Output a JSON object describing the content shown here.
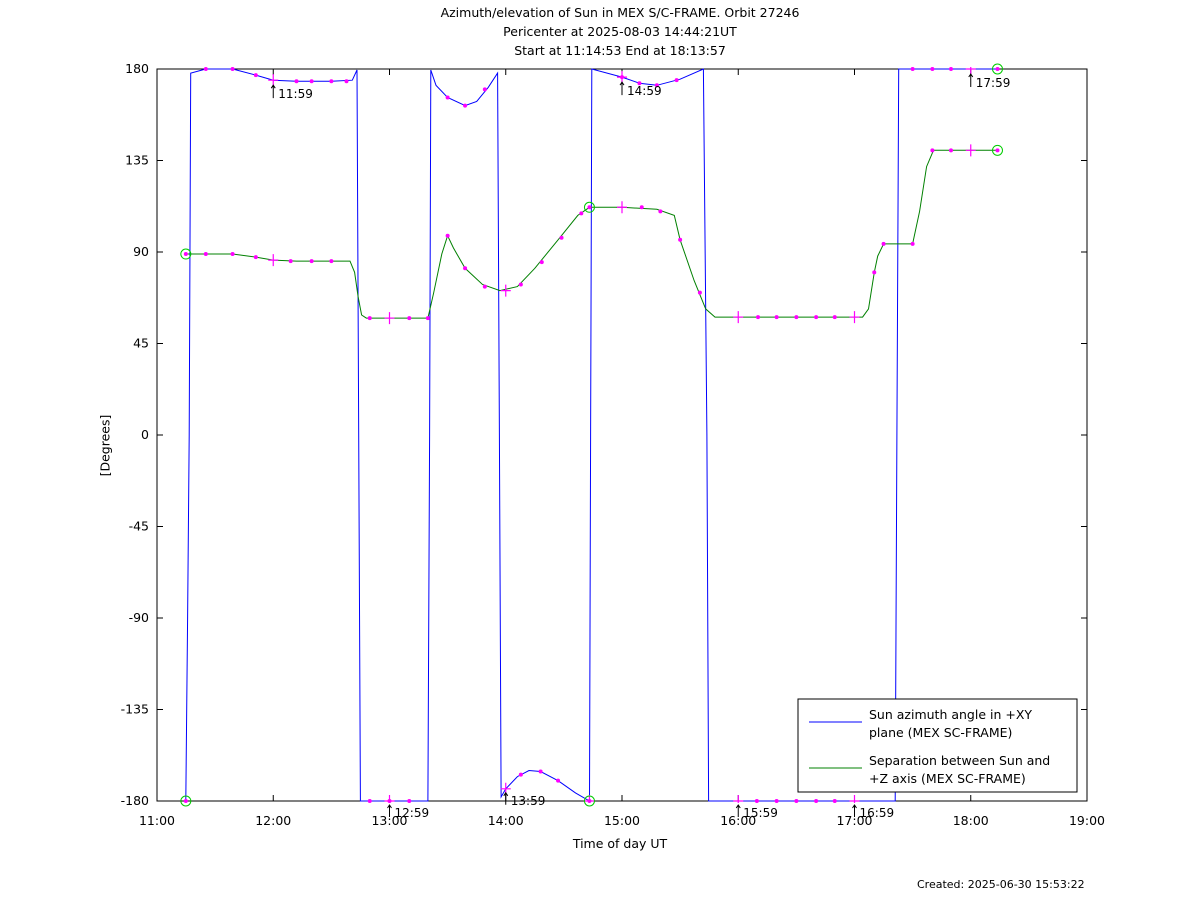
{
  "header": {
    "title": "Azimuth/elevation of Sun in MEX S/C-FRAME.  Orbit 27246",
    "line2": "Pericenter at 2025-08-03 14:44:21UT",
    "line3": "Start at 11:14:53 End at 18:13:57"
  },
  "footer": {
    "created": "Created: 2025-06-30 15:53:22"
  },
  "chart_data": {
    "type": "line",
    "xlabel": "Time of day UT",
    "ylabel": "[Degrees]",
    "xlim": [
      11.0,
      19.0
    ],
    "ylim": [
      -180,
      180
    ],
    "xticks": [
      11,
      12,
      13,
      14,
      15,
      16,
      17,
      18,
      19
    ],
    "xtick_labels": [
      "11:00",
      "12:00",
      "13:00",
      "14:00",
      "15:00",
      "16:00",
      "17:00",
      "18:00",
      "19:00"
    ],
    "yticks": [
      180,
      135,
      90,
      45,
      0,
      -45,
      -90,
      -135,
      -180
    ],
    "ytick_labels": [
      "180",
      "135",
      "90",
      "45",
      "0",
      "-45",
      "-90",
      "-135",
      "-180"
    ],
    "grid": false,
    "legend_position": "bottom-right",
    "series": [
      {
        "name": "Sun azimuth angle in +XY plane (MEX SC-FRAME)",
        "legend_lines": [
          "Sun azimuth angle in +XY",
          "plane (MEX SC-FRAME)"
        ],
        "color": "#0000ff",
        "points": [
          [
            11.248,
            -180
          ],
          [
            11.263,
            -90
          ],
          [
            11.277,
            0
          ],
          [
            11.29,
            178
          ],
          [
            11.42,
            180
          ],
          [
            11.65,
            180
          ],
          [
            11.85,
            177
          ],
          [
            12.0,
            174.5
          ],
          [
            12.2,
            174
          ],
          [
            12.5,
            174
          ],
          [
            12.68,
            174.5
          ],
          [
            12.72,
            179.5
          ],
          [
            12.735,
            0
          ],
          [
            12.75,
            -180
          ],
          [
            13.0,
            -180
          ],
          [
            13.33,
            -180
          ],
          [
            13.345,
            0
          ],
          [
            13.355,
            179.5
          ],
          [
            13.4,
            172
          ],
          [
            13.5,
            166
          ],
          [
            13.65,
            162
          ],
          [
            13.75,
            164
          ],
          [
            13.85,
            171
          ],
          [
            13.93,
            178
          ],
          [
            13.945,
            0
          ],
          [
            13.96,
            -178
          ],
          [
            14.0,
            -174
          ],
          [
            14.1,
            -168
          ],
          [
            14.2,
            -165
          ],
          [
            14.3,
            -165.5
          ],
          [
            14.45,
            -170
          ],
          [
            14.6,
            -176
          ],
          [
            14.72,
            -180
          ],
          [
            14.73,
            0
          ],
          [
            14.74,
            180
          ],
          [
            15.0,
            176
          ],
          [
            15.15,
            173
          ],
          [
            15.3,
            172
          ],
          [
            15.5,
            175
          ],
          [
            15.7,
            180
          ],
          [
            15.73,
            0
          ],
          [
            15.745,
            -180
          ],
          [
            16.0,
            -180
          ],
          [
            16.5,
            -180
          ],
          [
            17.0,
            -180
          ],
          [
            17.35,
            -180
          ],
          [
            17.365,
            0
          ],
          [
            17.38,
            180
          ],
          [
            17.7,
            180
          ],
          [
            18.0,
            180
          ],
          [
            18.23,
            180
          ]
        ]
      },
      {
        "name": "Separation between Sun and +Z axis (MEX SC-FRAME)",
        "legend_lines": [
          "Separation between Sun and",
          "+Z axis (MEX SC-FRAME)"
        ],
        "color": "#008000",
        "points": [
          [
            11.248,
            89
          ],
          [
            11.4,
            89
          ],
          [
            11.65,
            89
          ],
          [
            11.85,
            87.5
          ],
          [
            12.0,
            86
          ],
          [
            12.2,
            85.5
          ],
          [
            12.5,
            85.5
          ],
          [
            12.66,
            85.5
          ],
          [
            12.7,
            80
          ],
          [
            12.73,
            68
          ],
          [
            12.76,
            59
          ],
          [
            12.8,
            57.5
          ],
          [
            13.0,
            57.5
          ],
          [
            13.33,
            57.5
          ],
          [
            13.38,
            70
          ],
          [
            13.45,
            89
          ],
          [
            13.5,
            98
          ],
          [
            13.55,
            92
          ],
          [
            13.65,
            82
          ],
          [
            13.8,
            74
          ],
          [
            13.95,
            71
          ],
          [
            14.1,
            73
          ],
          [
            14.25,
            82
          ],
          [
            14.45,
            96
          ],
          [
            14.62,
            108
          ],
          [
            14.72,
            112
          ],
          [
            15.0,
            112
          ],
          [
            15.3,
            111
          ],
          [
            15.45,
            108
          ],
          [
            15.5,
            96
          ],
          [
            15.62,
            76
          ],
          [
            15.72,
            62
          ],
          [
            15.8,
            58
          ],
          [
            16.0,
            58
          ],
          [
            16.5,
            58
          ],
          [
            17.07,
            58
          ],
          [
            17.12,
            62
          ],
          [
            17.17,
            80
          ],
          [
            17.2,
            88
          ],
          [
            17.25,
            94
          ],
          [
            17.5,
            94
          ],
          [
            17.56,
            110
          ],
          [
            17.62,
            132
          ],
          [
            17.68,
            140
          ],
          [
            18.0,
            140
          ],
          [
            18.23,
            140
          ]
        ]
      }
    ],
    "markers": {
      "color": "#ff00ff",
      "small_azimuth": [
        [
          11.42,
          180
        ],
        [
          11.65,
          180
        ],
        [
          11.85,
          177
        ],
        [
          12.2,
          174
        ],
        [
          12.33,
          174
        ],
        [
          12.5,
          174
        ],
        [
          12.63,
          174
        ],
        [
          13.5,
          166
        ],
        [
          13.65,
          162
        ],
        [
          13.82,
          170
        ],
        [
          14.13,
          -167
        ],
        [
          14.3,
          -165.5
        ],
        [
          14.45,
          -170
        ],
        [
          15.0,
          176
        ],
        [
          15.15,
          173
        ],
        [
          15.3,
          172
        ],
        [
          15.47,
          174.5
        ],
        [
          16.16,
          -180
        ],
        [
          16.33,
          -180
        ],
        [
          16.5,
          -180
        ],
        [
          16.67,
          -180
        ],
        [
          16.83,
          -180
        ],
        [
          17.5,
          180
        ],
        [
          17.67,
          180
        ],
        [
          17.83,
          180
        ],
        [
          13.0,
          -180
        ],
        [
          13.17,
          -180
        ],
        [
          12.83,
          -180
        ]
      ],
      "cross_azimuth": [
        [
          12.0,
          174.5
        ],
        [
          13.0,
          -180
        ],
        [
          14.0,
          -174
        ],
        [
          15.0,
          176
        ],
        [
          16.0,
          -180
        ],
        [
          17.0,
          -180
        ],
        [
          18.0,
          180
        ],
        [
          14.72,
          -180
        ]
      ],
      "small_separation": [
        [
          11.42,
          89
        ],
        [
          11.65,
          89
        ],
        [
          11.85,
          87.5
        ],
        [
          12.15,
          85.5
        ],
        [
          12.33,
          85.5
        ],
        [
          12.5,
          85.5
        ],
        [
          12.83,
          57.5
        ],
        [
          13.17,
          57.5
        ],
        [
          13.33,
          57.5
        ],
        [
          13.5,
          98
        ],
        [
          13.65,
          82
        ],
        [
          13.82,
          73
        ],
        [
          14.13,
          74
        ],
        [
          14.31,
          85
        ],
        [
          14.48,
          97
        ],
        [
          14.65,
          109
        ],
        [
          15.17,
          112
        ],
        [
          15.33,
          110
        ],
        [
          15.5,
          96
        ],
        [
          15.67,
          70
        ],
        [
          16.17,
          58
        ],
        [
          16.33,
          58
        ],
        [
          16.5,
          58
        ],
        [
          16.67,
          58
        ],
        [
          16.83,
          58
        ],
        [
          17.17,
          80
        ],
        [
          17.25,
          94
        ],
        [
          17.5,
          94
        ],
        [
          17.67,
          140
        ],
        [
          17.83,
          140
        ]
      ],
      "cross_separation": [
        [
          12.0,
          86
        ],
        [
          13.0,
          57.5
        ],
        [
          14.0,
          71
        ],
        [
          15.0,
          112
        ],
        [
          16.0,
          58
        ],
        [
          17.0,
          58
        ],
        [
          18.0,
          140
        ]
      ],
      "circles": [
        [
          11.248,
          -180
        ],
        [
          11.248,
          89
        ],
        [
          14.72,
          -180
        ],
        [
          14.72,
          112
        ],
        [
          18.23,
          180
        ],
        [
          18.23,
          140
        ]
      ]
    },
    "annotations": [
      {
        "x": 12.0,
        "y": 174.5,
        "label": "11:59",
        "edge": "top"
      },
      {
        "x": 13.0,
        "y": -180,
        "label": "12:59",
        "edge": "bottom"
      },
      {
        "x": 14.0,
        "y": -174,
        "label": "13:59",
        "edge": "bottom"
      },
      {
        "x": 15.0,
        "y": 176,
        "label": "14:59",
        "edge": "top"
      },
      {
        "x": 16.0,
        "y": -180,
        "label": "15:59",
        "edge": "bottom"
      },
      {
        "x": 17.0,
        "y": -180,
        "label": "16:59",
        "edge": "bottom"
      },
      {
        "x": 18.0,
        "y": 180,
        "label": "17:59",
        "edge": "top"
      }
    ]
  }
}
